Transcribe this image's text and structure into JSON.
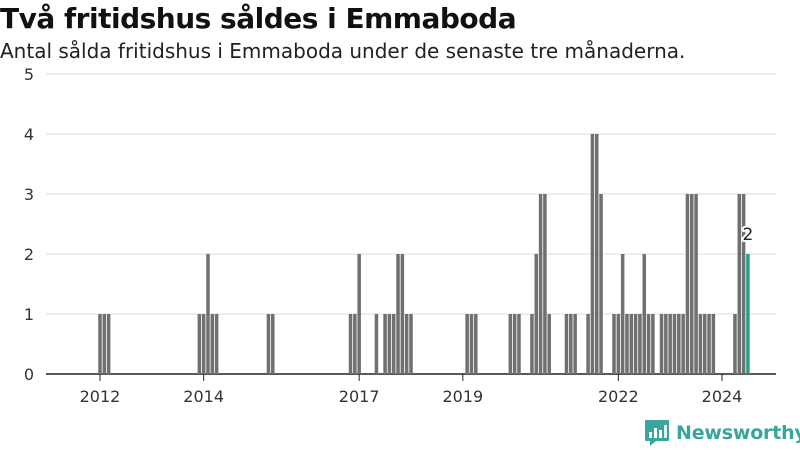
{
  "header": {
    "title": "Två fritidshus såldes i Emmaboda",
    "subtitle": "Antal sålda fritidshus i Emmaboda under de senaste tre månaderna."
  },
  "brand": {
    "name": "Newsworthy",
    "color": "#3aa59a"
  },
  "chart_data": {
    "type": "bar",
    "x_start": "2011-06",
    "x_end": "2025-07",
    "x_ticks": [
      "2012",
      "2014",
      "2017",
      "2019",
      "2022",
      "2024"
    ],
    "ylim": [
      0,
      5
    ],
    "y_ticks": [
      0,
      1,
      2,
      3,
      4,
      5
    ],
    "grid": true,
    "legend": "none",
    "bar_color": "#707070",
    "highlight_color": "#2a9d8f",
    "highlight_label": "2",
    "series": [
      {
        "x": [
          "2012-06",
          "2012-07",
          "2012-08",
          "2014-05",
          "2014-06",
          "2014-07",
          "2014-08",
          "2014-09",
          "2015-09",
          "2015-10",
          "2017-04",
          "2017-05",
          "2017-06",
          "2017-10",
          "2017-12",
          "2018-01",
          "2018-02",
          "2018-03",
          "2018-04",
          "2018-05",
          "2018-06",
          "2019-07",
          "2019-08",
          "2019-09",
          "2020-05",
          "2020-06",
          "2020-07",
          "2020-10",
          "2020-11",
          "2020-12",
          "2021-01",
          "2021-02",
          "2021-06",
          "2021-07",
          "2021-08",
          "2021-11",
          "2021-12",
          "2022-01",
          "2022-02",
          "2022-05",
          "2022-06",
          "2022-07",
          "2022-08",
          "2022-09",
          "2022-10",
          "2022-11",
          "2022-12",
          "2023-01",
          "2023-02",
          "2023-04",
          "2023-05",
          "2023-06",
          "2023-07",
          "2023-08",
          "2023-09",
          "2023-10",
          "2023-11",
          "2023-12",
          "2024-01",
          "2024-02",
          "2024-03",
          "2024-04",
          "2024-09",
          "2024-10",
          "2024-11",
          "2024-12"
        ],
        "values": [
          1,
          1,
          1,
          1,
          1,
          2,
          1,
          1,
          1,
          1,
          1,
          1,
          2,
          1,
          1,
          1,
          1,
          2,
          2,
          1,
          1,
          1,
          1,
          1,
          1,
          1,
          1,
          1,
          2,
          3,
          3,
          1,
          1,
          1,
          1,
          1,
          4,
          4,
          3,
          1,
          1,
          2,
          1,
          1,
          1,
          1,
          2,
          1,
          1,
          1,
          1,
          1,
          1,
          1,
          1,
          3,
          3,
          3,
          1,
          1,
          1,
          1,
          1,
          3,
          3,
          2
        ]
      }
    ]
  }
}
